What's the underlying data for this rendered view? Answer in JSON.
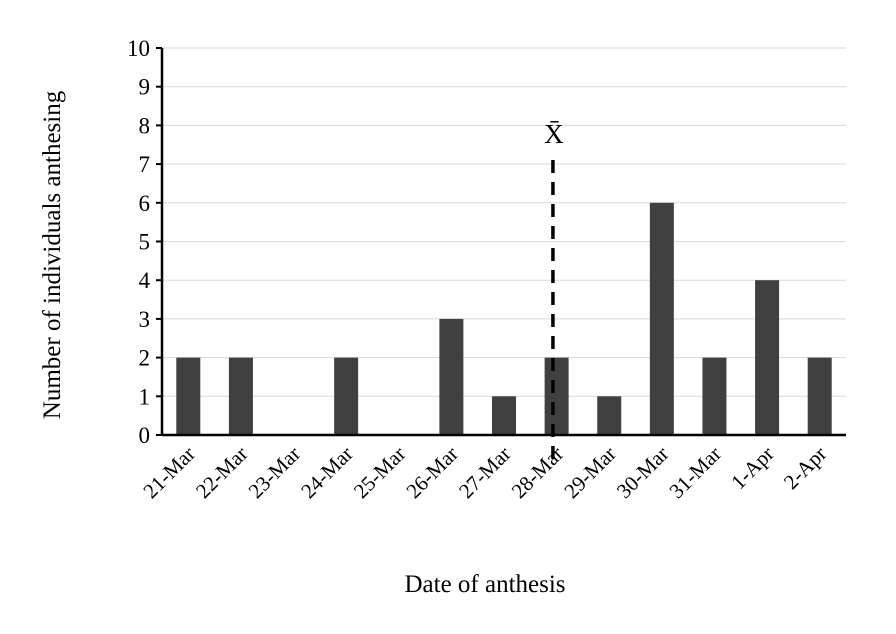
{
  "chart_data": {
    "type": "bar",
    "title": "",
    "xlabel": "Date of anthesis",
    "ylabel": "Number of individuals anthesing",
    "categories": [
      "21-Mar",
      "22-Mar",
      "23-Mar",
      "24-Mar",
      "25-Mar",
      "26-Mar",
      "27-Mar",
      "28-Mar",
      "29-Mar",
      "30-Mar",
      "31-Mar",
      "1-Apr",
      "2-Apr"
    ],
    "values": [
      2,
      2,
      0,
      2,
      0,
      3,
      1,
      2,
      1,
      6,
      2,
      4,
      2
    ],
    "ylim": [
      0,
      10
    ],
    "yticks": [
      0,
      1,
      2,
      3,
      4,
      5,
      6,
      7,
      8,
      9,
      10
    ],
    "grid": true,
    "bar_color": "#404040",
    "mean_marker": {
      "label": "X̄",
      "category_index": 6.93,
      "style": "dashed"
    }
  }
}
